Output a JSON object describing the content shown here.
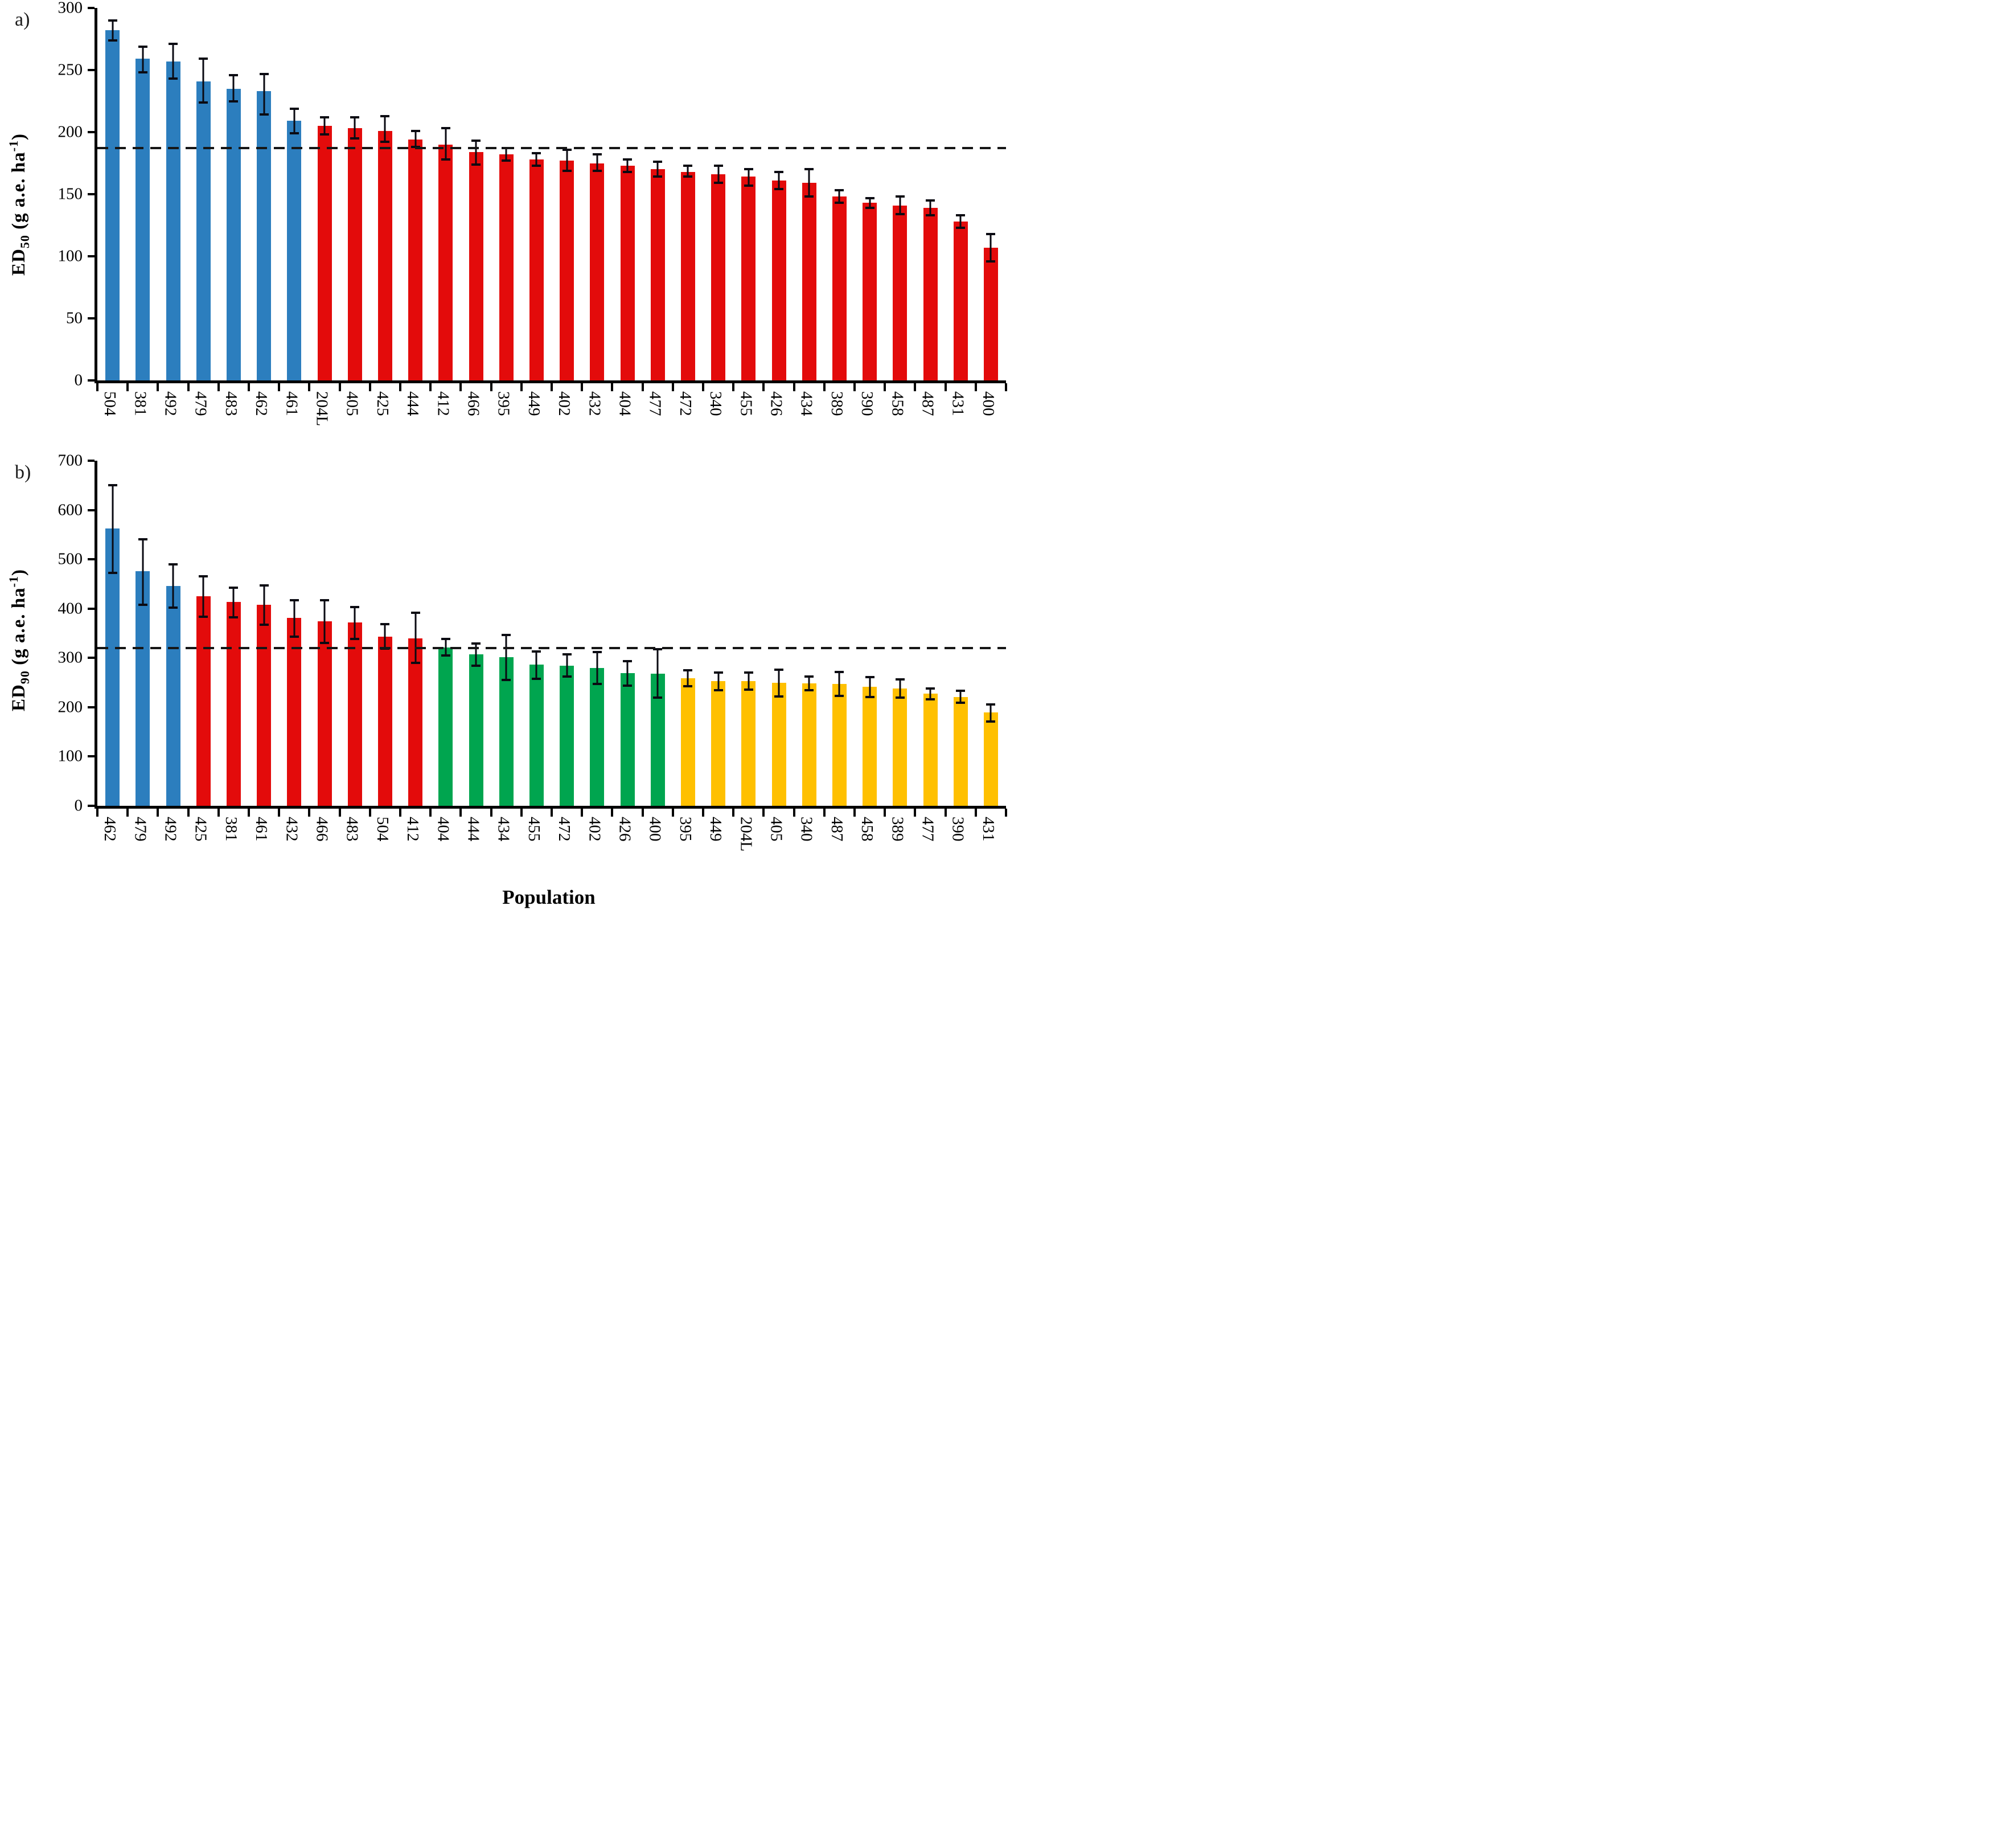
{
  "figure": {
    "panel_a_letter": "a)",
    "panel_b_letter": "b)",
    "x_axis_title": "Population",
    "y_label_a": {
      "prefix": "ED",
      "sub": "50",
      "unit_open": " (g a.e. ha",
      "sup": "-1",
      "unit_close": ")"
    },
    "y_label_b": {
      "prefix": "ED",
      "sub": "90",
      "unit_open": " (g a.e. ha",
      "sup": "-1",
      "unit_close": ")"
    }
  },
  "palette": {
    "blue": "#2C7EBE",
    "red": "#E30B0B",
    "green": "#00A54F",
    "yellow": "#FFC000",
    "error_bar": "#0A0A12",
    "axis": "#000000",
    "reference_dash": "#161616"
  },
  "chart_data": [
    {
      "id": "a",
      "type": "bar",
      "title": "",
      "ylabel": "ED50 (g a.e. ha-1)",
      "xlabel": "Population",
      "ylim": [
        0,
        300
      ],
      "yticks": [
        0,
        50,
        100,
        150,
        200,
        250,
        300
      ],
      "grid": false,
      "legend": "none",
      "reference_line": 187,
      "categories": [
        "504",
        "381",
        "492",
        "479",
        "483",
        "462",
        "461",
        "204L",
        "405",
        "425",
        "444",
        "412",
        "466",
        "395",
        "449",
        "402",
        "432",
        "404",
        "477",
        "472",
        "340",
        "455",
        "426",
        "434",
        "389",
        "390",
        "458",
        "487",
        "431",
        "400"
      ],
      "values": [
        282,
        259,
        257,
        241,
        235,
        233,
        209,
        205,
        203,
        201,
        194,
        190,
        184,
        182,
        178,
        177,
        175,
        173,
        170,
        168,
        166,
        164,
        161,
        159,
        148,
        143,
        141,
        139,
        128,
        107
      ],
      "err_high": [
        8,
        10,
        14,
        18,
        11,
        14,
        10,
        7,
        9,
        12,
        7,
        13,
        9,
        5,
        5,
        9,
        7,
        5,
        6,
        5,
        7,
        6,
        7,
        11,
        5,
        4,
        7,
        6,
        5,
        11
      ],
      "err_low": [
        8,
        11,
        14,
        17,
        10,
        19,
        10,
        7,
        8,
        9,
        6,
        12,
        10,
        5,
        5,
        8,
        6,
        5,
        6,
        4,
        7,
        7,
        7,
        11,
        5,
        4,
        7,
        6,
        5,
        11
      ],
      "groups": [
        "blue",
        "blue",
        "blue",
        "blue",
        "blue",
        "blue",
        "blue",
        "red",
        "red",
        "red",
        "red",
        "red",
        "red",
        "red",
        "red",
        "red",
        "red",
        "red",
        "red",
        "red",
        "red",
        "red",
        "red",
        "red",
        "red",
        "red",
        "red",
        "red",
        "red",
        "red"
      ]
    },
    {
      "id": "b",
      "type": "bar",
      "title": "",
      "ylabel": "ED90 (g a.e. ha-1)",
      "xlabel": "Population",
      "ylim": [
        0,
        700
      ],
      "yticks": [
        0,
        100,
        200,
        300,
        400,
        500,
        600,
        700
      ],
      "grid": false,
      "legend": "none",
      "reference_line": 320,
      "categories": [
        "462",
        "479",
        "492",
        "425",
        "381",
        "461",
        "432",
        "466",
        "483",
        "504",
        "412",
        "404",
        "444",
        "434",
        "455",
        "472",
        "402",
        "426",
        "400",
        "395",
        "449",
        "204L",
        "405",
        "340",
        "487",
        "458",
        "389",
        "477",
        "390",
        "431"
      ],
      "values": [
        562,
        476,
        446,
        425,
        413,
        408,
        381,
        374,
        372,
        343,
        340,
        321,
        307,
        302,
        286,
        284,
        279,
        269,
        268,
        259,
        253,
        253,
        249,
        248,
        247,
        241,
        238,
        227,
        221,
        189
      ],
      "err_high": [
        88,
        65,
        44,
        40,
        29,
        39,
        36,
        43,
        31,
        26,
        52,
        17,
        22,
        45,
        27,
        23,
        33,
        24,
        50,
        16,
        17,
        17,
        27,
        14,
        25,
        20,
        19,
        11,
        12,
        17
      ],
      "err_low": [
        90,
        68,
        44,
        42,
        31,
        41,
        38,
        44,
        33,
        24,
        50,
        16,
        23,
        47,
        28,
        22,
        32,
        25,
        48,
        16,
        18,
        17,
        27,
        13,
        24,
        20,
        19,
        11,
        12,
        18
      ],
      "groups": [
        "blue",
        "blue",
        "blue",
        "red",
        "red",
        "red",
        "red",
        "red",
        "red",
        "red",
        "red",
        "green",
        "green",
        "green",
        "green",
        "green",
        "green",
        "green",
        "green",
        "yellow",
        "yellow",
        "yellow",
        "yellow",
        "yellow",
        "yellow",
        "yellow",
        "yellow",
        "yellow",
        "yellow",
        "yellow"
      ]
    }
  ]
}
